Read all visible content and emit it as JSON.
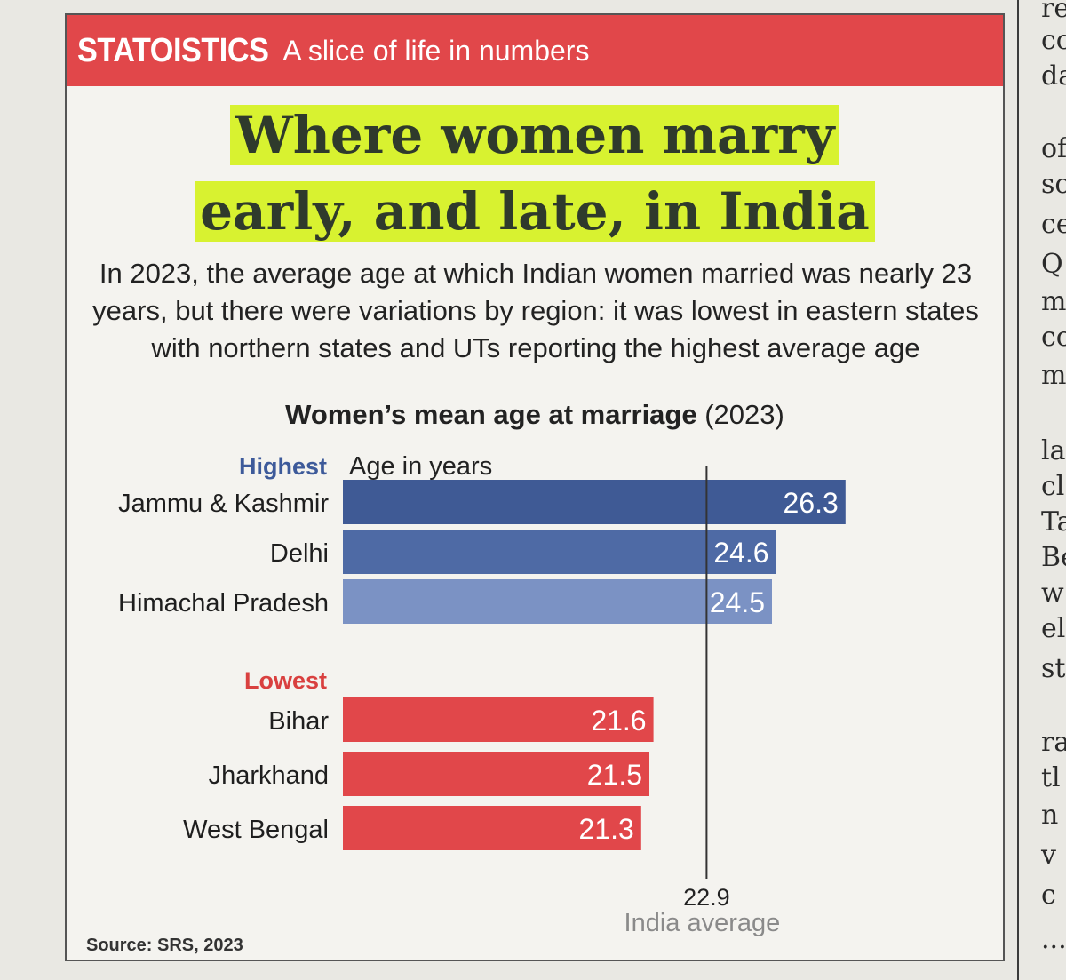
{
  "background_text": [
    "re",
    "co",
    "da",
    "of",
    "sc",
    "ce",
    "Q",
    "m",
    "co",
    "m",
    "la",
    "cl",
    "Ta",
    "Be",
    "w",
    "el",
    "st",
    "ra",
    "tl",
    "n",
    "v",
    "c",
    "..."
  ],
  "banner": {
    "logo": "STATOISTICS",
    "tagline": "A slice of life in numbers"
  },
  "headline": {
    "line1": "Where women marry",
    "line2": "early, and late, in India"
  },
  "intro": "In 2023, the average age at which Indian women married was nearly 23 years, but there were variations by region: it was lowest in eastern states with northern states and UTs reporting the highest average age",
  "chart_title": {
    "bold": "Women’s mean age at marriage",
    "normal": "(2023)"
  },
  "source": "Source: SRS, 2023",
  "colors": {
    "banner": "#e1474a",
    "highlight": "#d8f230",
    "highest_label": "#3d5a9a",
    "lowest_label": "#d9403f",
    "bar_high_1": "#3f5a95",
    "bar_high_2": "#4e6aa5",
    "bar_high_3": "#7b92c4",
    "bar_low": "#e1474a"
  },
  "chart_data": {
    "type": "bar",
    "orientation": "horizontal",
    "unit_label": "Age in years",
    "groups": [
      {
        "name": "Highest",
        "categories": [
          "Jammu & Kashmir",
          "Delhi",
          "Himachal Pradesh"
        ],
        "values": [
          26.3,
          24.6,
          24.5
        ]
      },
      {
        "name": "Lowest",
        "categories": [
          "Bihar",
          "Jharkhand",
          "West Bengal"
        ],
        "values": [
          21.6,
          21.5,
          21.3
        ]
      }
    ],
    "reference_line": {
      "value": 22.9,
      "value_label": "22.9",
      "label": "India average"
    },
    "xlim": [
      14,
      26.5
    ]
  }
}
